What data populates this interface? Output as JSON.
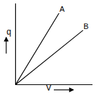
{
  "chart_data": {
    "type": "line",
    "x_label": "V",
    "y_label": "q",
    "xlim": [
      0,
      10
    ],
    "ylim": [
      0,
      10
    ],
    "tick_labels": false,
    "series": [
      {
        "name": "A",
        "color": "#000000",
        "x": [
          0,
          5.6
        ],
        "values": [
          0,
          8.8
        ]
      },
      {
        "name": "B",
        "color": "#000000",
        "x": [
          0,
          8.7
        ],
        "values": [
          0,
          6.7
        ]
      }
    ]
  }
}
